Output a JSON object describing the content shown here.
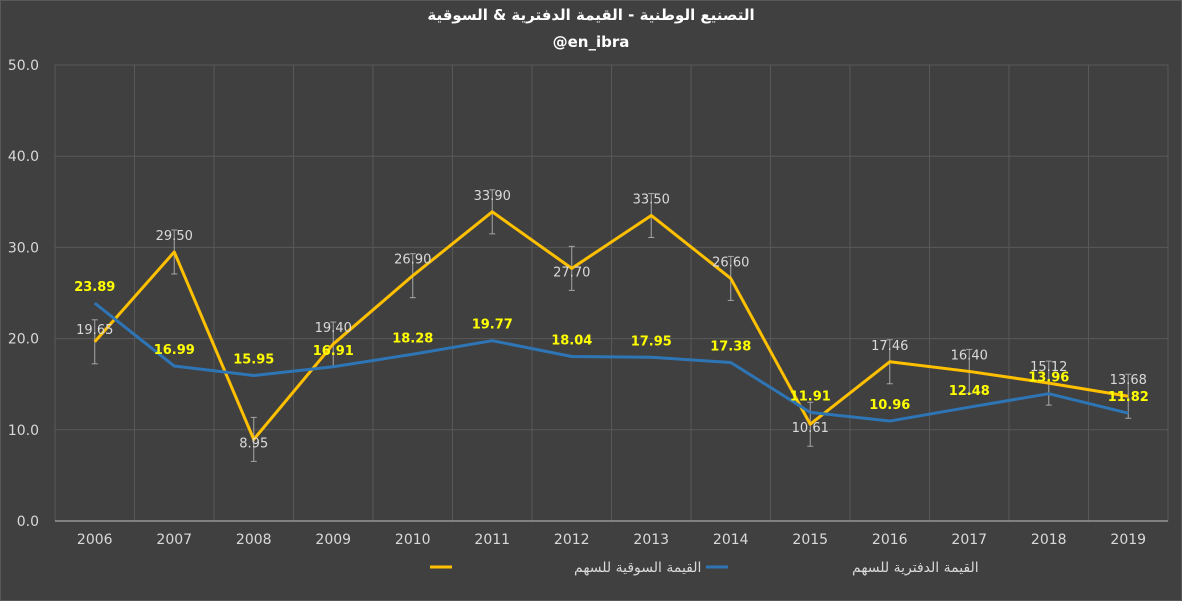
{
  "chart_data": {
    "type": "line",
    "title": "التصنيع الوطنية - القيمة الدفترية & السوقية",
    "subtitle": "@en_ibra",
    "categories": [
      "2006",
      "2007",
      "2008",
      "2009",
      "2010",
      "2011",
      "2012",
      "2013",
      "2014",
      "2015",
      "2016",
      "2017",
      "2018",
      "2019"
    ],
    "ylim": [
      0,
      50
    ],
    "y_ticks": [
      "0.0",
      "10.0",
      "20.0",
      "30.0",
      "40.0",
      "50.0"
    ],
    "grid": true,
    "legend_position": "bottom",
    "series": [
      {
        "name": "القيمة السوقية للسهم",
        "color": "#FFC000",
        "label_color": "#D9D9D9",
        "values": [
          19.65,
          29.5,
          8.95,
          19.4,
          26.9,
          33.9,
          27.7,
          33.5,
          26.6,
          10.61,
          17.46,
          16.4,
          15.12,
          13.68
        ],
        "labels": [
          "19.65",
          "29.50",
          "8.95",
          "19.40",
          "26.90",
          "33.90",
          "27.70",
          "33.50",
          "26.60",
          "10.61",
          "17.46",
          "16.40",
          "15.12",
          "13.68"
        ],
        "error_bars": true
      },
      {
        "name": "القيمة الدفترية للسهم",
        "color": "#2E75B6",
        "label_color": "#FFFF00",
        "values": [
          23.89,
          16.99,
          15.95,
          16.91,
          18.28,
          19.77,
          18.04,
          17.95,
          17.38,
          11.91,
          10.96,
          12.48,
          13.96,
          11.82
        ],
        "labels": [
          "23.89",
          "16.99",
          "15.95",
          "16.91",
          "18.28",
          "19.77",
          "18.04",
          "17.95",
          "17.38",
          "11.91",
          "10.96",
          "12.48",
          "13.96",
          "11.82"
        ]
      }
    ]
  }
}
